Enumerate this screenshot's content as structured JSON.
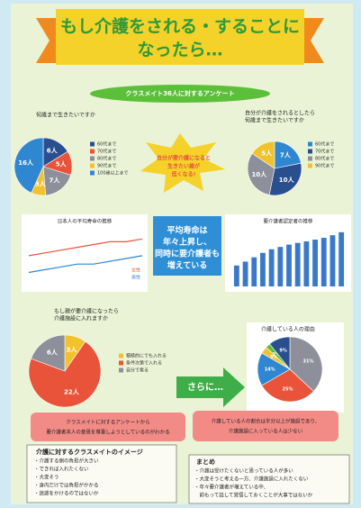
{
  "title_lines": [
    "もし介護をされる・することに",
    "なったら…"
  ],
  "survey_banner": "クラスメイト36人に対するアンケート",
  "star_lines": [
    "自分が要介護になると",
    "生きたい歳が",
    "低くなる!"
  ],
  "pies": [
    {
      "title_lines": [
        "何歳まで生きたいですか"
      ],
      "values": [
        6,
        5,
        7,
        3,
        16
      ],
      "value_labels": [
        "6人",
        "5人",
        "7人",
        "3人",
        "16人"
      ],
      "colors": [
        "#2a4f8f",
        "#e8533a",
        "#8d8f9a",
        "#f2c22e",
        "#2f86d1"
      ],
      "legend": [
        "60代まで",
        "70代まで",
        "80代まで",
        "90代まで",
        "100歳以上まで"
      ]
    },
    {
      "title_lines": [
        "自分が介護をされるとしたら",
        "何歳まで生きたいですか"
      ],
      "values": [
        7,
        10,
        10,
        5
      ],
      "value_labels": [
        "7人",
        "10人",
        "10人",
        "5人"
      ],
      "colors": [
        "#2f86d1",
        "#2a4f8f",
        "#8d8f9a",
        "#f2c22e"
      ],
      "legend": [
        "60代まで",
        "70代まで",
        "80代まで",
        "90代まで"
      ]
    },
    {
      "title_lines": [
        "もし親が要介護になったら",
        "介護施設に入れますか"
      ],
      "values": [
        3,
        22,
        6
      ],
      "value_labels": [
        "3人",
        "22人",
        "6人"
      ],
      "colors": [
        "#f2c22e",
        "#e8533a",
        "#8d8f9a"
      ],
      "legend": [
        "積極的にでも入れる",
        "条件次第で入れる",
        "自分で看る"
      ]
    },
    {
      "title_lines": [
        "介護している人の理由"
      ],
      "values": [
        31,
        25,
        14,
        3,
        2,
        9
      ],
      "value_labels": [
        "31%",
        "25%",
        "14%",
        "3%",
        "2%",
        "9%"
      ],
      "colors": [
        "#8d8f9a",
        "#e8533a",
        "#2f86d1",
        "#f2c22e",
        "#5cbf3a",
        "#2a4f8f"
      ],
      "legend": []
    }
  ],
  "line_chart": {
    "title": "日本人の平均寿命の推移",
    "series": [
      {
        "name": "女性",
        "color": "#e8533a",
        "values": [
          81,
          82,
          83,
          84,
          85,
          86,
          86,
          87
        ]
      },
      {
        "name": "男性",
        "color": "#2f86d1",
        "values": [
          75,
          76,
          77,
          78,
          78,
          79,
          80,
          81
        ]
      }
    ],
    "ylim": [
      70,
      90
    ]
  },
  "blue_box_lines": [
    "平均寿命は",
    "年々上昇し、",
    "同時に要介護者も",
    "増えている"
  ],
  "bar_chart": {
    "title": "要介護者認定者の推移",
    "values": [
      218,
      258,
      303,
      349,
      387,
      411,
      435,
      453,
      469,
      487,
      506,
      533,
      564
    ],
    "color": "#3a78c9",
    "ylim": [
      0,
      600
    ]
  },
  "arrow_text": "さらに…",
  "red_box_1_lines": [
    "クラスメイトに対するアンケートから",
    "要介護者本人の意思を尊重しようとしているのがわかる"
  ],
  "red_box_2_lines": [
    "介護している人の割合は半分以上が施設であり、",
    "介護施設に入っている人は少ない"
  ],
  "image_box": {
    "title": "介護に対するクラスメイトのイメージ",
    "items": [
      "・介護する側の負担が大きい",
      "・できれば入れたくない",
      "・大変そう",
      "・身内だけでは負担がかかる",
      "・迷惑をかけるのではないか"
    ]
  },
  "summary_box": {
    "title": "まとめ",
    "items": [
      "・介護は受けたくないと思っている人が多い",
      "・大変そうと考える一方、介護施設に入れたくない",
      "・年々要介護者が増えている中、",
      "　前もって話して覚悟しておくことが大事ではないか"
    ]
  }
}
